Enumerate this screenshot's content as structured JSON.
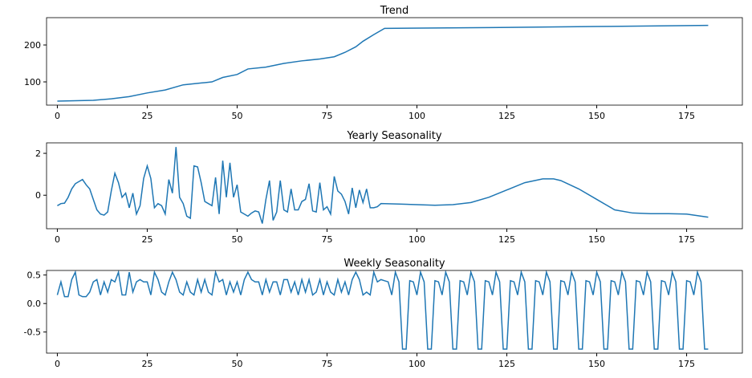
{
  "chart_data": [
    {
      "type": "line",
      "title": "Trend",
      "color": "#1f77b4",
      "x": [
        0,
        5,
        10,
        15,
        20,
        25,
        30,
        35,
        40,
        43,
        46,
        50,
        53,
        58,
        63,
        68,
        73,
        77,
        80,
        83,
        85,
        88,
        91,
        120,
        150,
        181
      ],
      "values": [
        48,
        49,
        50,
        54,
        60,
        70,
        78,
        92,
        97,
        100,
        112,
        120,
        135,
        140,
        150,
        157,
        162,
        168,
        180,
        195,
        210,
        228,
        245,
        247,
        250,
        253
      ],
      "xlim": [
        -3,
        190.5
      ],
      "ylim": [
        37,
        274
      ],
      "xticks": [
        0,
        25,
        50,
        75,
        100,
        125,
        150,
        175
      ],
      "yticks": [
        100,
        200
      ]
    },
    {
      "type": "line",
      "title": "Yearly Seasonality",
      "color": "#1f77b4",
      "x": [
        0,
        1,
        2,
        3,
        4,
        5,
        6,
        7,
        8,
        9,
        10,
        11,
        12,
        13,
        14,
        15,
        16,
        17,
        18,
        19,
        20,
        21,
        22,
        23,
        24,
        25,
        26,
        27,
        28,
        29,
        30,
        31,
        32,
        33,
        34,
        35,
        36,
        37,
        38,
        39,
        40,
        41,
        42,
        43,
        44,
        45,
        46,
        47,
        48,
        49,
        50,
        51,
        52,
        53,
        54,
        55,
        56,
        57,
        58,
        59,
        60,
        61,
        62,
        63,
        64,
        65,
        66,
        67,
        68,
        69,
        70,
        71,
        72,
        73,
        74,
        75,
        76,
        77,
        78,
        79,
        80,
        81,
        82,
        83,
        84,
        85,
        86,
        87,
        88,
        89,
        90,
        95,
        100,
        105,
        110,
        115,
        120,
        125,
        130,
        135,
        138,
        140,
        145,
        150,
        155,
        160,
        165,
        170,
        175,
        181
      ],
      "values": [
        -0.5,
        -0.4,
        -0.38,
        -0.1,
        0.3,
        0.55,
        0.65,
        0.75,
        0.5,
        0.3,
        -0.2,
        -0.7,
        -0.9,
        -0.95,
        -0.8,
        0.2,
        1.05,
        0.6,
        -0.1,
        0.1,
        -0.6,
        0.1,
        -0.9,
        -0.5,
        0.8,
        1.4,
        0.8,
        -0.6,
        -0.4,
        -0.5,
        -0.9,
        0.75,
        0.1,
        2.3,
        -0.1,
        -0.4,
        -1.0,
        -1.1,
        1.4,
        1.35,
        0.6,
        -0.3,
        -0.4,
        -0.5,
        0.85,
        -0.9,
        1.65,
        -0.1,
        1.55,
        -0.1,
        0.5,
        -0.8,
        -0.9,
        -1.0,
        -0.85,
        -0.75,
        -0.8,
        -1.35,
        -0.2,
        0.7,
        -1.2,
        -0.8,
        0.7,
        -0.7,
        -0.8,
        0.3,
        -0.7,
        -0.7,
        -0.3,
        -0.2,
        0.55,
        -0.75,
        -0.8,
        0.6,
        -0.7,
        -0.55,
        -0.9,
        0.9,
        0.2,
        0.05,
        -0.3,
        -0.9,
        0.35,
        -0.6,
        0.25,
        -0.35,
        0.3,
        -0.6,
        -0.6,
        -0.55,
        -0.4,
        -0.42,
        -0.45,
        -0.48,
        -0.45,
        -0.35,
        -0.1,
        0.25,
        0.6,
        0.78,
        0.78,
        0.7,
        0.3,
        -0.2,
        -0.7,
        -0.85,
        -0.88,
        -0.88,
        -0.9,
        -1.05
      ],
      "xlim": [
        -3,
        190.5
      ],
      "ylim": [
        -1.6,
        2.5
      ],
      "xticks": [
        0,
        25,
        50,
        75,
        100,
        125,
        150,
        175
      ],
      "yticks": [
        0,
        2
      ]
    },
    {
      "type": "line",
      "title": "Weekly Seasonality",
      "color": "#1f77b4",
      "x": [
        0,
        1,
        2,
        3,
        4,
        5,
        6,
        7,
        8,
        9,
        10,
        11,
        12,
        13,
        14,
        15,
        16,
        17,
        18,
        19,
        20,
        21,
        22,
        23,
        24,
        25,
        26,
        27,
        28,
        29,
        30,
        31,
        32,
        33,
        34,
        35,
        36,
        37,
        38,
        39,
        40,
        41,
        42,
        43,
        44,
        45,
        46,
        47,
        48,
        49,
        50,
        51,
        52,
        53,
        54,
        55,
        56,
        57,
        58,
        59,
        60,
        61,
        62,
        63,
        64,
        65,
        66,
        67,
        68,
        69,
        70,
        71,
        72,
        73,
        74,
        75,
        76,
        77,
        78,
        79,
        80,
        81,
        82,
        83,
        84,
        85,
        86,
        87,
        88,
        89,
        90,
        91,
        92,
        93,
        94,
        95,
        96,
        97,
        98,
        99,
        100,
        101,
        102,
        103,
        104,
        105,
        106,
        107,
        108,
        109,
        110,
        111,
        112,
        113,
        114,
        115,
        116,
        117,
        118,
        119,
        120,
        121,
        122,
        123,
        124,
        125,
        126,
        127,
        128,
        129,
        130,
        131,
        132,
        133,
        134,
        135,
        136,
        137,
        138,
        139,
        140,
        141,
        142,
        143,
        144,
        145,
        146,
        147,
        148,
        149,
        150,
        151,
        152,
        153,
        154,
        155,
        156,
        157,
        158,
        159,
        160,
        161,
        162,
        163,
        164,
        165,
        166,
        167,
        168,
        169,
        170,
        171,
        172,
        173,
        174,
        175,
        176,
        177,
        178,
        179,
        180,
        181
      ],
      "values": [
        0.15,
        0.38,
        0.12,
        0.12,
        0.42,
        0.55,
        0.15,
        0.12,
        0.12,
        0.2,
        0.38,
        0.42,
        0.15,
        0.38,
        0.2,
        0.42,
        0.38,
        0.55,
        0.15,
        0.15,
        0.55,
        0.2,
        0.38,
        0.42,
        0.38,
        0.38,
        0.15,
        0.55,
        0.42,
        0.2,
        0.15,
        0.38,
        0.55,
        0.42,
        0.2,
        0.15,
        0.38,
        0.2,
        0.15,
        0.42,
        0.2,
        0.42,
        0.2,
        0.15,
        0.55,
        0.38,
        0.42,
        0.15,
        0.38,
        0.2,
        0.38,
        0.15,
        0.42,
        0.55,
        0.42,
        0.38,
        0.38,
        0.15,
        0.42,
        0.2,
        0.38,
        0.38,
        0.15,
        0.42,
        0.42,
        0.2,
        0.38,
        0.15,
        0.42,
        0.2,
        0.42,
        0.15,
        0.2,
        0.42,
        0.15,
        0.38,
        0.2,
        0.15,
        0.42,
        0.2,
        0.38,
        0.15,
        0.42,
        0.55,
        0.42,
        0.15,
        0.2,
        0.15,
        0.55,
        0.38,
        0.42,
        0.4,
        0.38,
        0.15,
        0.55,
        0.38,
        -0.8,
        -0.8,
        0.4,
        0.38,
        0.15,
        0.55,
        0.38,
        -0.8,
        -0.8,
        0.4,
        0.38,
        0.15,
        0.55,
        0.38,
        -0.8,
        -0.8,
        0.4,
        0.38,
        0.15,
        0.55,
        0.38,
        -0.8,
        -0.8,
        0.4,
        0.38,
        0.15,
        0.55,
        0.38,
        -0.8,
        -0.8,
        0.4,
        0.38,
        0.15,
        0.55,
        0.38,
        -0.8,
        -0.8,
        0.4,
        0.38,
        0.15,
        0.55,
        0.38,
        -0.8,
        -0.8,
        0.4,
        0.38,
        0.15,
        0.55,
        0.38,
        -0.8,
        -0.8,
        0.4,
        0.38,
        0.15,
        0.55,
        0.38,
        -0.8,
        -0.8,
        0.4,
        0.38,
        0.15,
        0.55,
        0.38,
        -0.8,
        -0.8,
        0.4,
        0.38,
        0.15,
        0.55,
        0.38,
        -0.8,
        -0.8,
        0.4,
        0.38,
        0.15,
        0.55,
        0.38,
        -0.8,
        -0.8,
        0.4,
        0.38,
        0.15,
        0.55,
        0.38,
        -0.8,
        -0.8
      ],
      "xlim": [
        -3,
        190.5
      ],
      "ylim": [
        -0.87,
        0.58
      ],
      "xticks": [
        0,
        25,
        50,
        75,
        100,
        125,
        150,
        175
      ],
      "yticks": [
        {
          "value": -0.5,
          "label": "-0.5"
        },
        {
          "value": 0,
          "label": "0.0"
        },
        {
          "value": 0.5,
          "label": "0.5"
        }
      ]
    }
  ]
}
